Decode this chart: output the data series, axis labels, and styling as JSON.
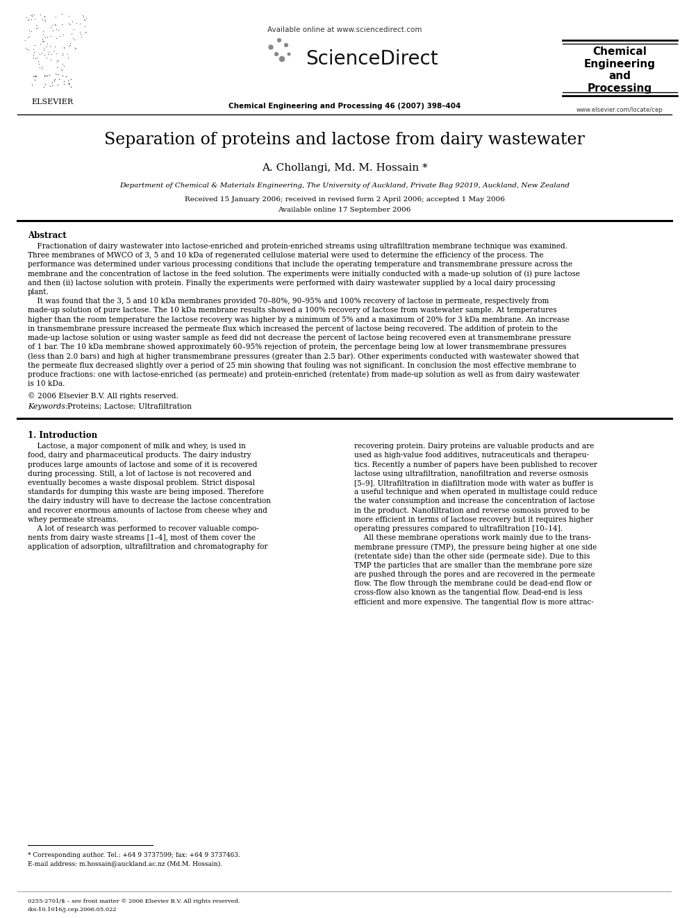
{
  "bg_color": "#ffffff",
  "title": "Separation of proteins and lactose from dairy wastewater",
  "authors": "A. Chollangi, Md. M. Hossain *",
  "affiliation": "Department of Chemical & Materials Engineering, The University of Auckland, Private Bag 92019, Auckland, New Zealand",
  "dates": "Received 15 January 2006; received in revised form 2 April 2006; accepted 1 May 2006",
  "online": "Available online 17 September 2006",
  "journal_line": "Chemical Engineering and Processing 46 (2007) 398–404",
  "sciencedirect_url": "Available online at www.sciencedirect.com",
  "sciencedirect_logo": "ScienceDirect",
  "elsevier_text": "ELSEVIER",
  "journal_box_text": "Chemical\nEngineering\nand\nProcessing",
  "website": "www.elsevier.com/locate/cep",
  "abstract_title": "Abstract",
  "copyright": "© 2006 Elsevier B.V. All rights reserved.",
  "keywords_label": "Keywords:",
  "keywords": "  Proteins; Lactose; Ultrafiltration",
  "section1_title": "1. Introduction",
  "footnote_star": "* Corresponding author. Tel.: +64 9 3737599; fax: +64 9 3737463.",
  "footnote_email": "E-mail address: m.hossain@auckland.ac.nz (Md.M. Hossain).",
  "bottom_line1": "0255-2701/$ – see front matter © 2006 Elsevier B.V. All rights reserved.",
  "bottom_line2": "doi:10.1016/j.cep.2006.05.022",
  "abstract_lines": [
    "    Fractionation of dairy wastewater into lactose-enriched and protein-enriched streams using ultrafiltration membrane technique was examined.",
    "Three membranes of MWCO of 3, 5 and 10 kDa of regenerated cellulose material were used to determine the efficiency of the process. The",
    "performance was determined under various processing conditions that include the operating temperature and transmembrane pressure across the",
    "membrane and the concentration of lactose in the feed solution. The experiments were initially conducted with a made-up solution of (i) pure lactose",
    "and then (ii) lactose solution with protein. Finally the experiments were performed with dairy wastewater supplied by a local dairy processing",
    "plant.",
    "    It was found that the 3, 5 and 10 kDa membranes provided 70–80%, 90–95% and 100% recovery of lactose in permeate, respectively from",
    "made-up solution of pure lactose. The 10 kDa membrane results showed a 100% recovery of lactose from wastewater sample. At temperatures",
    "higher than the room temperature the lactose recovery was higher by a minimum of 5% and a maximum of 20% for 3 kDa membrane. An increase",
    "in transmembrane pressure increased the permeate flux which increased the percent of lactose being recovered. The addition of protein to the",
    "made-up lactose solution or using waster sample as feed did not decrease the percent of lactose being recovered even at transmembrane pressure",
    "of 1 bar. The 10 kDa membrane showed approximately 60–95% rejection of protein, the percentage being low at lower transmembrane pressures",
    "(less than 2.0 bars) and high at higher transmembrane pressures (greater than 2.5 bar). Other experiments conducted with wastewater showed that",
    "the permeate flux decreased slightly over a period of 25 min showing that fouling was not significant. In conclusion the most effective membrane to",
    "produce fractions: one with lactose-enriched (as permeate) and protein-enriched (retentate) from made-up solution as well as from dairy wastewater",
    "is 10 kDa."
  ],
  "col1_lines": [
    "    Lactose, a major component of milk and whey, is used in",
    "food, dairy and pharmaceutical products. The dairy industry",
    "produces large amounts of lactose and some of it is recovered",
    "during processing. Still, a lot of lactose is not recovered and",
    "eventually becomes a waste disposal problem. Strict disposal",
    "standards for dumping this waste are being imposed. Therefore",
    "the dairy industry will have to decrease the lactose concentration",
    "and recover enormous amounts of lactose from cheese whey and",
    "whey permeate streams.",
    "    A lot of research was performed to recover valuable compo-",
    "nents from dairy waste streams [1–4], most of them cover the",
    "application of adsorption, ultrafiltration and chromatography for"
  ],
  "col2_lines": [
    "recovering protein. Dairy proteins are valuable products and are",
    "used as high-value food additives, nutraceuticals and therapeu-",
    "tics. Recently a number of papers have been published to recover",
    "lactose using ultrafiltration, nanofiltration and reverse osmosis",
    "[5–9]. Ultrafiltration in diafiltration mode with water as buffer is",
    "a useful technique and when operated in multistage could reduce",
    "the water consumption and increase the concentration of lactose",
    "in the product. Nanofiltration and reverse osmosis proved to be",
    "more efficient in terms of lactose recovery but it requires higher",
    "operating pressures compared to ultrafiltration [10–14].",
    "    All these membrane operations work mainly due to the trans-",
    "membrane pressure (TMP), the pressure being higher at one side",
    "(retentate side) than the other side (permeate side). Due to this",
    "TMP the particles that are smaller than the membrane pore size",
    "are pushed through the pores and are recovered in the permeate",
    "flow. The flow through the membrane could be dead-end flow or",
    "cross-flow also known as the tangential flow. Dead-end is less",
    "efficient and more expensive. The tangential flow is more attrac-"
  ]
}
